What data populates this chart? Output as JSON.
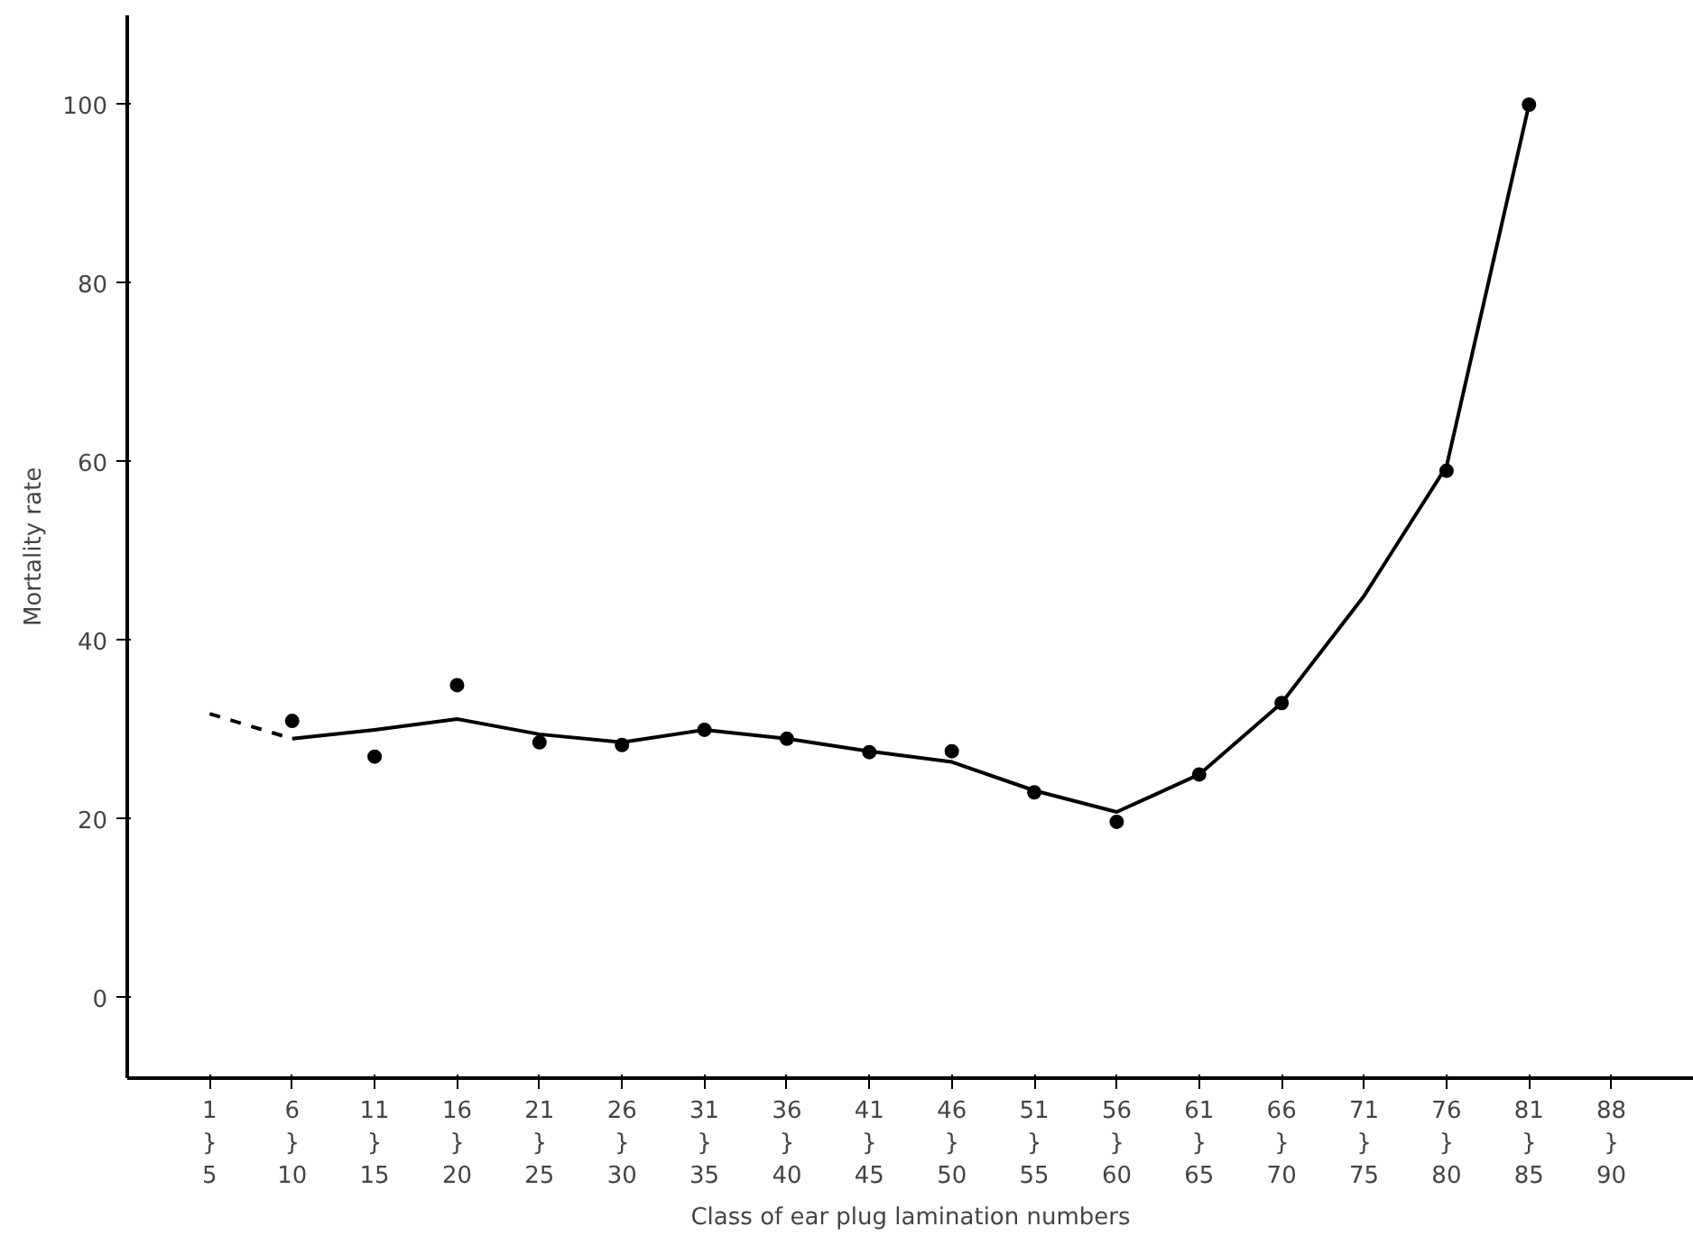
{
  "chart_data": {
    "type": "scatter",
    "xlabel": "Class of ear plug lamination numbers",
    "ylabel": "Mortality rate",
    "categories": [
      "1\n}\n5",
      "6\n}\n10",
      "11\n}\n15",
      "16\n}\n20",
      "21\n}\n25",
      "26\n}\n30",
      "31\n}\n35",
      "36\n}\n40",
      "41\n}\n45",
      "46\n}\n50",
      "51\n}\n55",
      "56\n}\n60",
      "61\n}\n65",
      "66\n}\n70",
      "71\n}\n75",
      "76\n}\n80",
      "81\n}\n85",
      "88\n}\n90"
    ],
    "series": [
      {
        "color": "#000000",
        "marker": "circle",
        "values": [
          null,
          31,
          27,
          35,
          28.6,
          28.3,
          30,
          29,
          27.5,
          27.6,
          23,
          19.7,
          25,
          33,
          null,
          59,
          100,
          null
        ]
      },
      {
        "type": "line",
        "color": "#000000",
        "line_style": "solid",
        "values": [
          null,
          29,
          30,
          31.2,
          29.5,
          28.6,
          30,
          29,
          27.6,
          26.4,
          23.2,
          20.8,
          25,
          33,
          45,
          59.5,
          100,
          null
        ]
      },
      {
        "type": "line",
        "color": "#000000",
        "line_style": "dashed",
        "values": [
          31.8,
          29,
          null,
          null,
          null,
          null,
          null,
          null,
          null,
          null,
          null,
          null,
          null,
          null,
          null,
          null,
          null,
          null
        ]
      }
    ],
    "ylim": [
      -9,
      110
    ],
    "yticks": [
      0,
      20,
      40,
      60,
      80,
      100
    ],
    "grid": false
  }
}
